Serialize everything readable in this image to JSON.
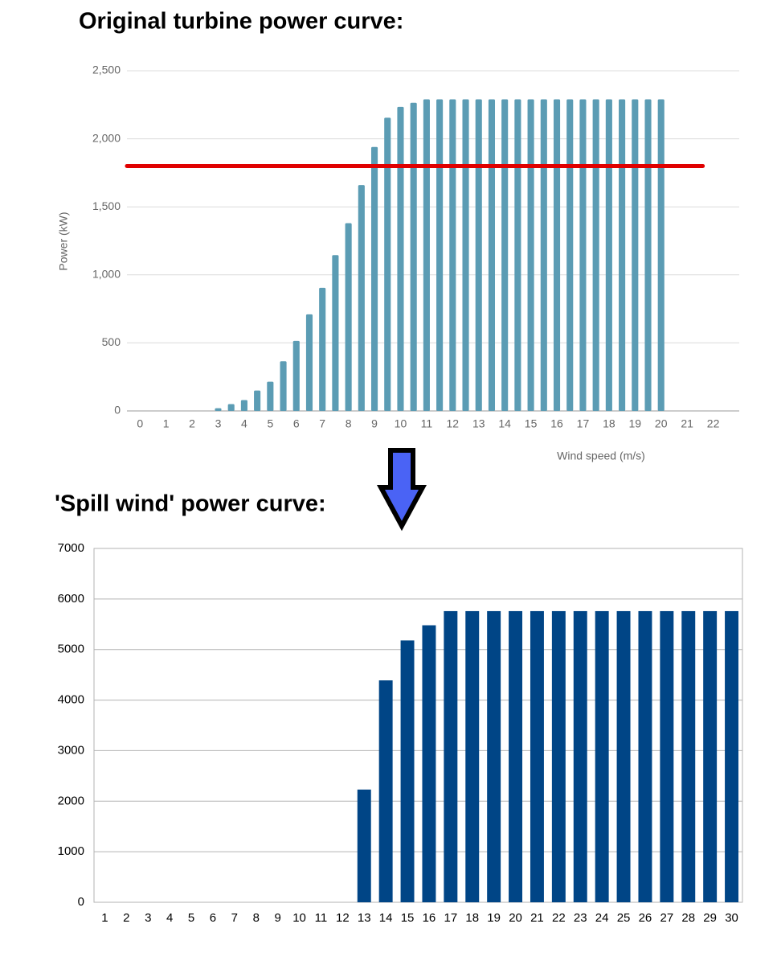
{
  "chart_data": [
    {
      "type": "bar",
      "title": "Original turbine power curve:",
      "x_label": "Wind speed (m/s)",
      "y_label": "Power (kW)",
      "x": [
        3,
        3.5,
        4,
        4.5,
        5,
        5.5,
        6,
        6.5,
        7,
        7.5,
        8,
        8.5,
        9,
        9.5,
        10,
        10.5,
        11,
        11.5,
        12,
        12.5,
        13,
        13.5,
        14,
        14.5,
        15,
        15.5,
        16,
        16.5,
        17,
        17.5,
        18,
        18.5,
        19,
        19.5,
        20
      ],
      "values": [
        20,
        50,
        80,
        150,
        215,
        365,
        515,
        710,
        905,
        1145,
        1380,
        1660,
        1940,
        2155,
        2235,
        2265,
        2290,
        2290,
        2290,
        2290,
        2290,
        2290,
        2290,
        2290,
        2290,
        2290,
        2290,
        2290,
        2290,
        2290,
        2290,
        2290,
        2290,
        2290,
        2290
      ],
      "color": "#5b9cb4",
      "xlim": [
        -0.5,
        23
      ],
      "xticks": [
        0,
        1,
        2,
        3,
        4,
        5,
        6,
        7,
        8,
        9,
        10,
        11,
        12,
        13,
        14,
        15,
        16,
        17,
        18,
        19,
        20,
        21,
        22
      ],
      "ylim": [
        0,
        2500
      ],
      "yticks": [
        0,
        500,
        {
          "value": 1000,
          "label": "1,000"
        },
        {
          "value": 1500,
          "label": "1,500"
        },
        {
          "value": 2000,
          "label": "2,000"
        },
        {
          "value": 2500,
          "label": "2,500"
        }
      ],
      "grid": true,
      "reference_line": {
        "y": 1800,
        "x": [
          -0.5,
          21.6
        ],
        "color": "#e00000"
      }
    },
    {
      "type": "bar",
      "title": "'Spill wind' power curve:",
      "categories": [
        "1",
        "2",
        "3",
        "4",
        "5",
        "6",
        "7",
        "8",
        "9",
        "10",
        "11",
        "12",
        "13",
        "14",
        "15",
        "16",
        "17",
        "18",
        "19",
        "20",
        "21",
        "22",
        "23",
        "24",
        "25",
        "26",
        "27",
        "28",
        "29",
        "30"
      ],
      "values": [
        0,
        0,
        0,
        0,
        0,
        0,
        0,
        0,
        0,
        0,
        0,
        0,
        2230,
        4390,
        5180,
        5480,
        5760,
        5760,
        5760,
        5760,
        5760,
        5760,
        5760,
        5760,
        5760,
        5760,
        5760,
        5760,
        5760,
        5760
      ],
      "color": "#004586",
      "ylim": [
        0,
        7000
      ],
      "yticks": [
        0,
        1000,
        2000,
        3000,
        4000,
        5000,
        6000,
        7000
      ],
      "grid": true
    }
  ]
}
